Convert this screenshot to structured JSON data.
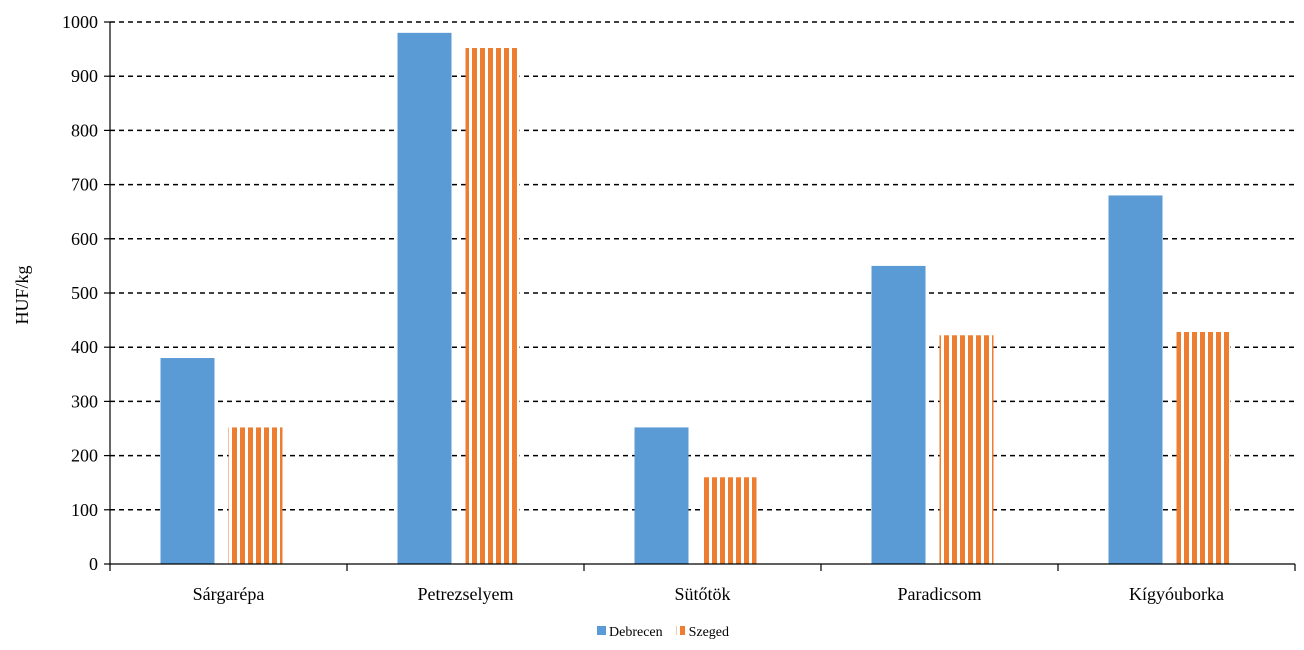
{
  "chart_data": {
    "type": "bar",
    "ylabel": "HUF/kg",
    "ylim": [
      0,
      1000
    ],
    "yticks": [
      0,
      100,
      200,
      300,
      400,
      500,
      600,
      700,
      800,
      900,
      1000
    ],
    "grid": true,
    "legend_position": "bottom-center",
    "categories": [
      "Sárgarépa",
      "Petrezselyem",
      "Sütőtök",
      "Paradicsom",
      "Kígyóuborka"
    ],
    "series": [
      {
        "name": "Debrecen",
        "color": "#5B9BD5",
        "pattern": "solid",
        "values": [
          380,
          980,
          252,
          550,
          680
        ]
      },
      {
        "name": "Szeged",
        "color": "#ED7D31",
        "pattern": "vertical-stripes",
        "values": [
          252,
          952,
          160,
          422,
          428
        ]
      }
    ]
  }
}
